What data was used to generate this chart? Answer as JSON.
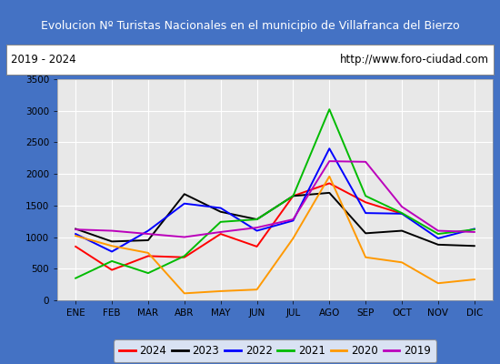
{
  "title": "Evolucion Nº Turistas Nacionales en el municipio de Villafranca del Bierzo",
  "subtitle_left": "2019 - 2024",
  "subtitle_right": "http://www.foro-ciudad.com",
  "months": [
    "ENE",
    "FEB",
    "MAR",
    "ABR",
    "MAY",
    "JUN",
    "JUL",
    "AGO",
    "SEP",
    "OCT",
    "NOV",
    "DIC"
  ],
  "series": {
    "2024": [
      850,
      480,
      700,
      680,
      1050,
      850,
      1650,
      1850,
      1550,
      1370,
      null,
      null
    ],
    "2023": [
      1130,
      930,
      950,
      1680,
      1400,
      1280,
      1650,
      1700,
      1060,
      1100,
      880,
      860
    ],
    "2022": [
      1050,
      770,
      1100,
      1530,
      1460,
      1100,
      1260,
      2400,
      1380,
      1370,
      980,
      1130
    ],
    "2021": [
      350,
      620,
      430,
      700,
      1240,
      1280,
      1650,
      3020,
      1650,
      1380,
      1050,
      1120
    ],
    "2020": [
      1020,
      860,
      750,
      110,
      145,
      170,
      980,
      1960,
      680,
      600,
      270,
      330
    ],
    "2019": [
      1120,
      1100,
      1050,
      1000,
      1080,
      1150,
      1280,
      2200,
      2190,
      1480,
      1100,
      1080
    ]
  },
  "colors": {
    "2024": "#ff0000",
    "2023": "#000000",
    "2022": "#0000ff",
    "2021": "#00bb00",
    "2020": "#ff9900",
    "2019": "#bb00bb"
  },
  "ylim": [
    0,
    3500
  ],
  "yticks": [
    0,
    500,
    1000,
    1500,
    2000,
    2500,
    3000,
    3500
  ],
  "title_bg": "#4472c4",
  "title_color": "#ffffff",
  "plot_bg": "#e8e8e8",
  "grid_color": "#ffffff",
  "border_color": "#4472c4",
  "inner_bg": "#ffffff"
}
